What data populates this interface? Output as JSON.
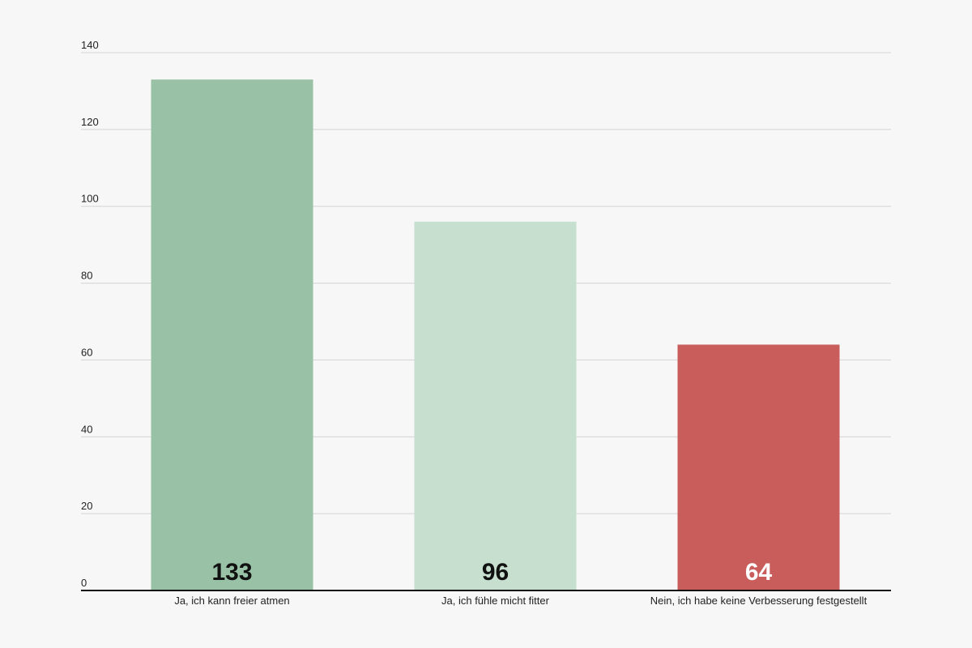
{
  "chart_data": {
    "type": "bar",
    "categories": [
      "Ja, ich kann freier atmen",
      "Ja, ich fühle micht fitter",
      "Nein, ich habe keine Verbesserung festgestellt"
    ],
    "values": [
      133,
      96,
      64
    ],
    "colors": [
      "#99c1a6",
      "#c6dfcf",
      "#c95d5b"
    ],
    "value_label_colors": [
      "#111111",
      "#111111",
      "#ffffff"
    ],
    "ylim": [
      0,
      140
    ],
    "yticks": [
      0,
      20,
      40,
      60,
      80,
      100,
      120,
      140
    ],
    "grid": true
  }
}
